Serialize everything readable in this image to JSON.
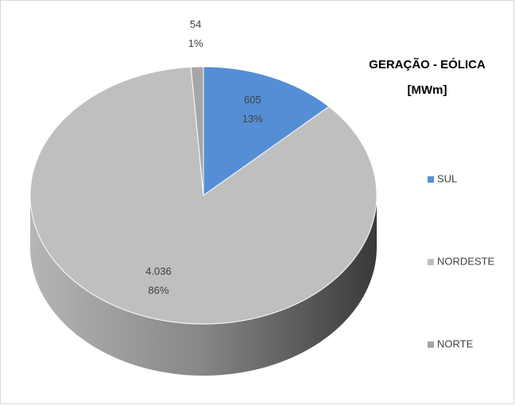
{
  "chart_data": {
    "type": "pie3d",
    "title": "GERAÇÃO - EÓLICA [MWm]",
    "categories": [
      "SUL",
      "NORDESTE",
      "NORTE"
    ],
    "values": [
      605,
      4036,
      54
    ],
    "value_labels": [
      "605",
      "4.036",
      "54"
    ],
    "percents": [
      13,
      86,
      1
    ],
    "percent_labels": [
      "13%",
      "86%",
      "1%"
    ],
    "colors": [
      "#558ed5",
      "#bfbfbf",
      "#a6a6a6"
    ],
    "legend": "right"
  }
}
